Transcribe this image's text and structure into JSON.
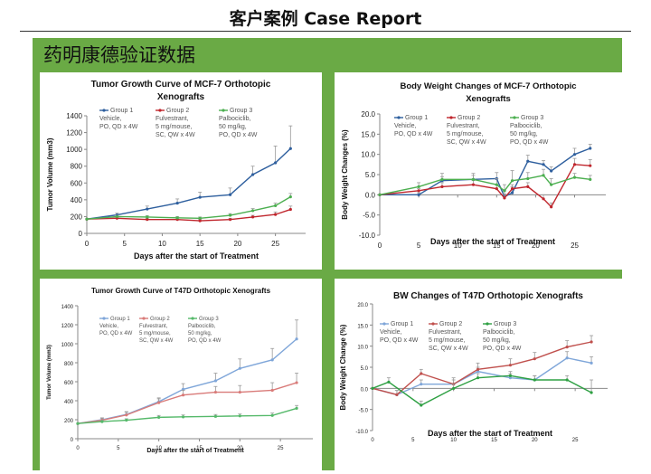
{
  "page": {
    "title": "客户案例 Case Report",
    "section_header": "药明康德验证数据"
  },
  "colors": {
    "panel_green": "#6aaa45",
    "group1": "#2e5f9e",
    "group2": "#c0262d",
    "group3": "#4caf50"
  },
  "chart_data": [
    {
      "id": "c1",
      "type": "line",
      "title": "Tumor Growth Curve of MCF-7 Orthotopic Xenografts",
      "title_lines": [
        "Tumor Growth Curve of MCF-7 Orthotopic",
        "Xenografts"
      ],
      "xlabel": "Days after the start of Treatment",
      "ylabel": "Tumor Volume (mm3)",
      "xlim": [
        0,
        29
      ],
      "ylim": [
        0,
        1400
      ],
      "xticks": [
        0,
        5,
        10,
        15,
        20,
        25
      ],
      "yticks": [
        0,
        200,
        400,
        600,
        800,
        1000,
        1200,
        1400
      ],
      "ytick_labels": [
        "0",
        "200",
        "400",
        "600",
        "800",
        "1000",
        "1200",
        "1400"
      ],
      "series": [
        {
          "name": "Group 1",
          "legend_lines": [
            "Group 1",
            "Vehicle,",
            "PO, QD x 4W"
          ],
          "color": "#2e5f9e",
          "x": [
            0,
            4,
            8,
            12,
            15,
            19,
            22,
            25,
            27
          ],
          "y": [
            170,
            220,
            290,
            360,
            430,
            460,
            700,
            840,
            1010
          ],
          "err": [
            0,
            20,
            35,
            50,
            60,
            80,
            100,
            200,
            270
          ]
        },
        {
          "name": "Group 2",
          "legend_lines": [
            "Group 2",
            "Fulvestrant,",
            "5 mg/mouse,",
            "SC, QW x 4W"
          ],
          "color": "#c0262d",
          "x": [
            0,
            4,
            8,
            12,
            15,
            19,
            22,
            25,
            27
          ],
          "y": [
            170,
            180,
            165,
            165,
            150,
            165,
            195,
            225,
            285
          ],
          "err": [
            0,
            15,
            15,
            15,
            15,
            15,
            20,
            30,
            40
          ]
        },
        {
          "name": "Group 3",
          "legend_lines": [
            "Group 3",
            "Palbociclib,",
            "50 mg/kg,",
            "PO, QD x 4W"
          ],
          "color": "#4caf50",
          "x": [
            0,
            4,
            8,
            12,
            15,
            19,
            22,
            25,
            27
          ],
          "y": [
            170,
            200,
            195,
            185,
            180,
            215,
            270,
            330,
            435
          ],
          "err": [
            0,
            15,
            15,
            15,
            15,
            20,
            25,
            30,
            40
          ]
        }
      ]
    },
    {
      "id": "c2",
      "type": "line",
      "title": "Body Weight Changes of MCF-7 Orthotopic Xenografts",
      "title_lines": [
        "Body Weight Changes of MCF-7 Orthotopic",
        "Xenografts"
      ],
      "xlabel": "Days after the start of Treatment",
      "ylabel": "Body Weight Changes (%)",
      "xlim": [
        0,
        29
      ],
      "ylim": [
        -10,
        20
      ],
      "xticks": [
        0,
        5,
        10,
        15,
        20,
        25
      ],
      "yticks": [
        -10,
        -5,
        0,
        5,
        10,
        15,
        20
      ],
      "ytick_labels": [
        "-10.0",
        "-5.0",
        "0.0",
        "5.0",
        "10.0",
        "15.0",
        "20.0"
      ],
      "series": [
        {
          "name": "Group 1",
          "legend_lines": [
            "Group 1",
            "Vehicle,",
            "PO, QD x 4W"
          ],
          "color": "#2e5f9e",
          "x": [
            0,
            5,
            8,
            12,
            15,
            16,
            17,
            19,
            21,
            22,
            25,
            27
          ],
          "y": [
            0,
            0,
            3.5,
            3.8,
            4.0,
            -0.5,
            0.5,
            8.3,
            7.5,
            5.9,
            10.0,
            11.5
          ],
          "err": [
            0,
            0.5,
            1.0,
            1.0,
            1.5,
            1.5,
            1.5,
            1.5,
            1.0,
            1.0,
            1.5,
            1.0
          ]
        },
        {
          "name": "Group 2",
          "legend_lines": [
            "Group 2",
            "Fulvestrant,",
            "5 mg/mouse,",
            "SC, QW x 4W"
          ],
          "color": "#c0262d",
          "x": [
            0,
            5,
            8,
            12,
            15,
            16,
            17,
            19,
            21,
            22,
            25,
            27
          ],
          "y": [
            0,
            1.0,
            2.0,
            2.5,
            1.5,
            -0.8,
            1.5,
            2.0,
            -1.0,
            -3.0,
            7.5,
            7.2
          ],
          "err": [
            0,
            0.5,
            1.0,
            1.0,
            1.0,
            1.0,
            1.0,
            1.0,
            1.0,
            1.0,
            1.5,
            1.5
          ]
        },
        {
          "name": "Group 3",
          "legend_lines": [
            "Group 3",
            "Palbociclib,",
            "50 mg/kg,",
            "PO, QD x 4W"
          ],
          "color": "#4caf50",
          "x": [
            0,
            5,
            8,
            12,
            15,
            16,
            17,
            19,
            21,
            22,
            25,
            27
          ],
          "y": [
            0,
            2.0,
            3.8,
            3.8,
            2.5,
            1.0,
            3.5,
            4.0,
            4.8,
            2.5,
            4.3,
            3.8
          ],
          "err": [
            0,
            1.0,
            1.5,
            1.5,
            1.5,
            1.5,
            2.5,
            1.5,
            1.5,
            1.5,
            1.0,
            1.0
          ]
        }
      ]
    },
    {
      "id": "c3",
      "type": "line",
      "title": "Tumor Growth Curve of T47D Orthotopic Xenografts",
      "title_lines": [
        "Tumor Growth Curve of T47D Orthotopic Xenografts"
      ],
      "xlabel": "Days after the start of Treatment",
      "ylabel": "Tumor Volume (mm3)",
      "xlim": [
        0,
        29
      ],
      "ylim": [
        0,
        1400
      ],
      "xticks": [
        0,
        5,
        10,
        15,
        20,
        25
      ],
      "yticks": [
        0,
        200,
        400,
        600,
        800,
        1000,
        1200,
        1400
      ],
      "ytick_labels": [
        "0",
        "200",
        "400",
        "600",
        "800",
        "1000",
        "1200",
        "1400"
      ],
      "series": [
        {
          "name": "Group 1",
          "legend_lines": [
            "Group 1",
            "Vehicle,",
            "PO, QD x 4W"
          ],
          "color": "#7fa6d9",
          "x": [
            0,
            3,
            6,
            10,
            13,
            17,
            20,
            24,
            27
          ],
          "y": [
            160,
            200,
            255,
            390,
            520,
            610,
            740,
            830,
            1050
          ],
          "err": [
            0,
            20,
            30,
            40,
            60,
            80,
            100,
            120,
            200
          ]
        },
        {
          "name": "Group 2",
          "legend_lines": [
            "Group 2",
            "Fulvestrant,",
            "5 mg/mouse,",
            "SC, QW x 4W"
          ],
          "color": "#d97b79",
          "x": [
            0,
            3,
            6,
            10,
            13,
            17,
            20,
            24,
            27
          ],
          "y": [
            160,
            195,
            250,
            380,
            460,
            490,
            490,
            510,
            590
          ],
          "err": [
            0,
            20,
            30,
            40,
            50,
            60,
            70,
            80,
            100
          ]
        },
        {
          "name": "Group 3",
          "legend_lines": [
            "Group 3",
            "Palbociclib,",
            "50 mg/kg,",
            "PO, QD x 4W"
          ],
          "color": "#55b96a",
          "x": [
            0,
            3,
            6,
            10,
            13,
            17,
            20,
            24,
            27
          ],
          "y": [
            160,
            180,
            195,
            225,
            230,
            235,
            240,
            245,
            320
          ],
          "err": [
            0,
            15,
            15,
            20,
            20,
            20,
            20,
            25,
            30
          ]
        }
      ]
    },
    {
      "id": "c4",
      "type": "line",
      "title": "BW Changes of T47D Orthotopic Xenografts",
      "title_lines": [
        "BW Changes of T47D Orthotopic Xenografts"
      ],
      "xlabel": "Days after the start of Treatment",
      "ylabel": "Body Weight Change (%)",
      "xlim": [
        0,
        29
      ],
      "ylim": [
        -10,
        20
      ],
      "xticks": [
        0,
        5,
        10,
        15,
        20,
        25
      ],
      "yticks": [
        -10,
        -5,
        0,
        5,
        10,
        15,
        20
      ],
      "ytick_labels": [
        "-10.0",
        "-5.0",
        "0.0",
        "5.0",
        "10.0",
        "15.0",
        "20.0"
      ],
      "series": [
        {
          "name": "Group 1",
          "legend_lines": [
            "Group 1",
            "Vehicle,",
            "PO, QD x 4W"
          ],
          "color": "#7fa6d9",
          "x": [
            0,
            3,
            6,
            10,
            13,
            17,
            20,
            24,
            27
          ],
          "y": [
            0,
            -1.5,
            1.0,
            1.0,
            4.0,
            2.5,
            2.0,
            7.2,
            6.0
          ],
          "err": [
            0,
            1.0,
            1.0,
            1.0,
            1.0,
            1.0,
            1.0,
            1.5,
            1.5
          ]
        },
        {
          "name": "Group 2",
          "legend_lines": [
            "Group 2",
            "Fulvestrant,",
            "5 mg/mouse,",
            "SC, QW x 4W"
          ],
          "color": "#c0504d",
          "x": [
            0,
            3,
            6,
            10,
            13,
            17,
            20,
            24,
            27
          ],
          "y": [
            0,
            -1.5,
            3.5,
            1.0,
            4.5,
            5.5,
            7.0,
            9.8,
            11.0
          ],
          "err": [
            0,
            1.0,
            1.0,
            1.5,
            1.5,
            1.5,
            1.5,
            1.5,
            1.5
          ]
        },
        {
          "name": "Group 3",
          "legend_lines": [
            "Group 3",
            "Palbociclib,",
            "50 mg/kg,",
            "PO, QD x 4W"
          ],
          "color": "#2ea043",
          "x": [
            0,
            2,
            6,
            10,
            13,
            17,
            20,
            24,
            27
          ],
          "y": [
            0,
            1.5,
            -4.0,
            0.0,
            2.5,
            3.0,
            2.0,
            2.0,
            -1.0
          ],
          "err": [
            0,
            1.0,
            1.0,
            1.0,
            1.0,
            1.0,
            1.0,
            1.0,
            3.0
          ]
        }
      ]
    }
  ]
}
